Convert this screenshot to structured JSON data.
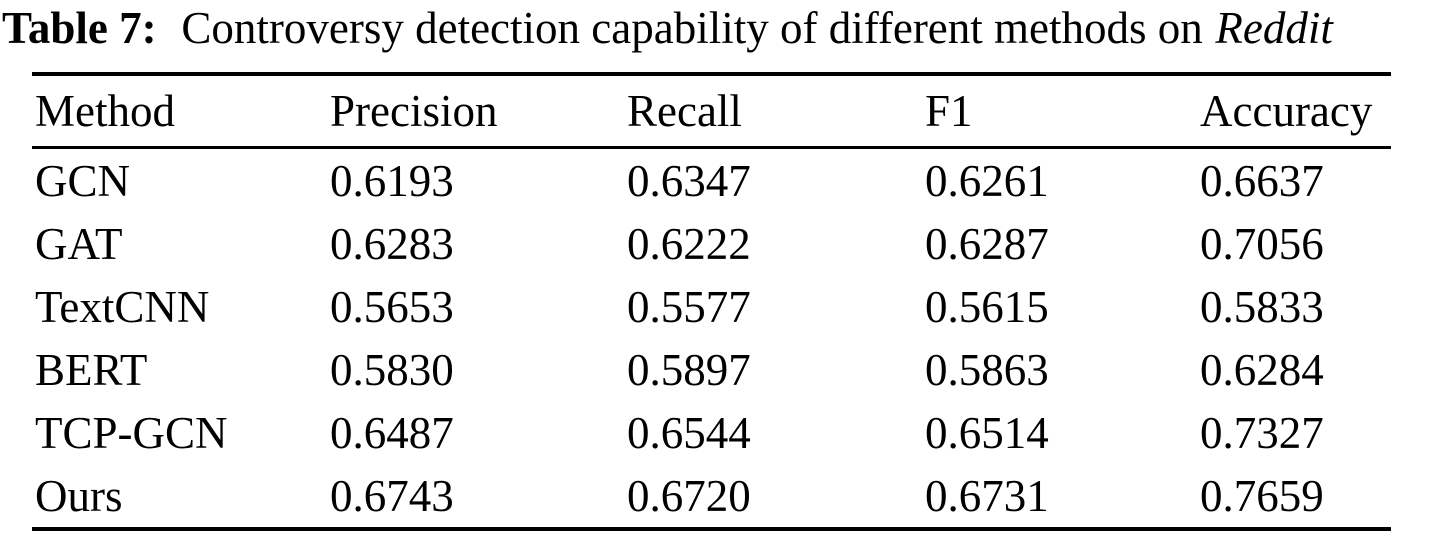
{
  "title": {
    "label": "Table 7:",
    "caption": "Controversy detection capability of different methods on",
    "emphasis": "Reddit"
  },
  "table": {
    "columns": [
      "Method",
      "Precision",
      "Recall",
      "F1",
      "Accuracy"
    ],
    "rows": [
      [
        "GCN",
        "0.6193",
        "0.6347",
        "0.6261",
        "0.6637"
      ],
      [
        "GAT",
        "0.6283",
        "0.6222",
        "0.6287",
        "0.7056"
      ],
      [
        "TextCNN",
        "0.5653",
        "0.5577",
        "0.5615",
        "0.5833"
      ],
      [
        "BERT",
        "0.5830",
        "0.5897",
        "0.5863",
        "0.6284"
      ],
      [
        "TCP-GCN",
        "0.6487",
        "0.6544",
        "0.6514",
        "0.7327"
      ],
      [
        "Ours",
        "0.6743",
        "0.6720",
        "0.6731",
        "0.7659"
      ]
    ]
  },
  "chart_data": {
    "type": "table",
    "title": "Table 7: Controversy detection capability of different methods on Reddit",
    "categories": [
      "GCN",
      "GAT",
      "TextCNN",
      "BERT",
      "TCP-GCN",
      "Ours"
    ],
    "series": [
      {
        "name": "Precision",
        "values": [
          0.6193,
          0.6283,
          0.5653,
          0.583,
          0.6487,
          0.6743
        ]
      },
      {
        "name": "Recall",
        "values": [
          0.6347,
          0.6222,
          0.5577,
          0.5897,
          0.6544,
          0.672
        ]
      },
      {
        "name": "F1",
        "values": [
          0.6261,
          0.6287,
          0.5615,
          0.5863,
          0.6514,
          0.6731
        ]
      },
      {
        "name": "Accuracy",
        "values": [
          0.6637,
          0.7056,
          0.5833,
          0.6284,
          0.7327,
          0.7659
        ]
      }
    ]
  },
  "colors": {
    "text": "#000000",
    "background": "#ffffff",
    "rule": "#000000"
  }
}
